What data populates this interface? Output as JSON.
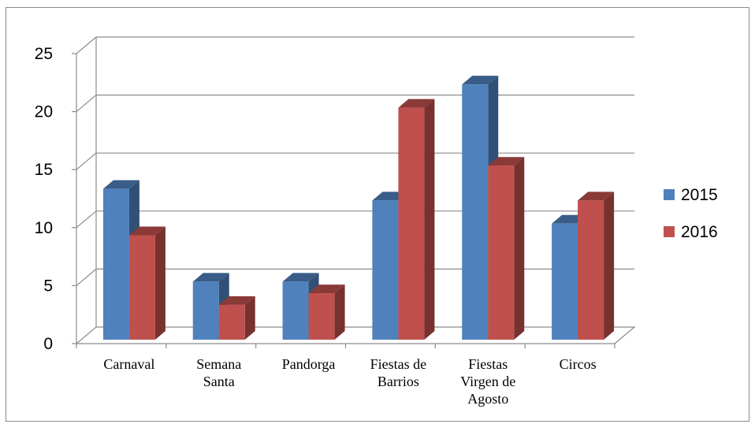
{
  "chart_data": {
    "type": "bar",
    "title": "",
    "xlabel": "",
    "ylabel": "",
    "categories": [
      [
        "Carnaval"
      ],
      [
        "Semana",
        "Santa"
      ],
      [
        "Pandorga"
      ],
      [
        "Fiestas de",
        "Barrios"
      ],
      [
        "Fiestas",
        "Virgen de",
        "Agosto"
      ],
      [
        "Circos"
      ]
    ],
    "series": [
      {
        "name": "2015",
        "values": [
          13,
          5,
          5,
          12,
          22,
          10
        ],
        "color": "#4f81bd"
      },
      {
        "name": "2016",
        "values": [
          9,
          3,
          4,
          20,
          15,
          12
        ],
        "color": "#c0504d"
      }
    ],
    "ylim": [
      0,
      25
    ],
    "yticks": [
      0,
      5,
      10,
      15,
      20,
      25
    ],
    "grid": true,
    "legend_position": "right"
  }
}
